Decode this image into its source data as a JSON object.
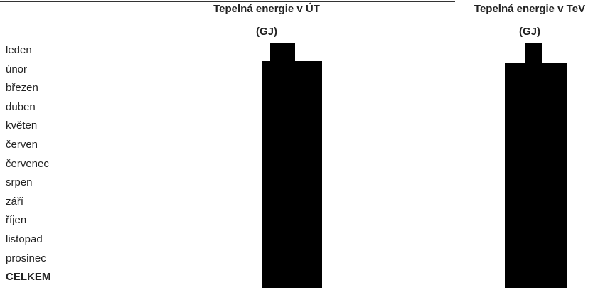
{
  "table": {
    "columns": [
      {
        "title": "Tepelná energie v ÚT",
        "unit": "(GJ)"
      },
      {
        "title": "Tepelná energie v TeV",
        "unit": "(GJ)"
      }
    ],
    "rows": [
      "leden",
      "únor",
      "březen",
      "duben",
      "květen",
      "červen",
      "červenec",
      "srpen",
      "září",
      "říjen",
      "listopad",
      "prosinec"
    ],
    "total": "CELKEM"
  }
}
